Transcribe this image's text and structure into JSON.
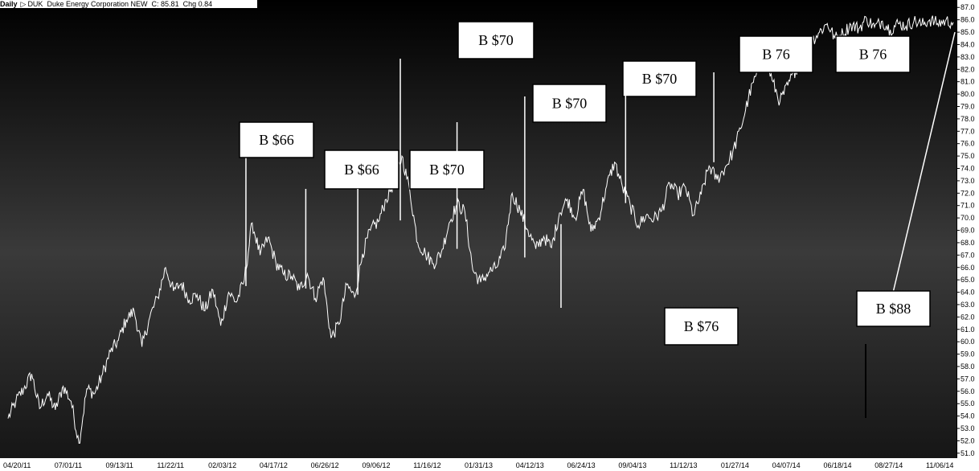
{
  "header": {
    "period": "Daily",
    "glyph": "▷",
    "ticker": "DUK",
    "company": "Duke Energy Corporation NEW",
    "close_label": "C: 85.81",
    "change_label": "Chg 0.84"
  },
  "chart_data": {
    "type": "line",
    "title": "",
    "xlabel": "",
    "ylabel": "",
    "ylim": [
      50.6,
      87.6
    ],
    "y_ticks": [
      "51.0",
      "52.0",
      "53.0",
      "54.0",
      "55.0",
      "56.0",
      "57.0",
      "58.0",
      "59.0",
      "60.0",
      "61.0",
      "62.0",
      "63.0",
      "64.0",
      "65.0",
      "66.0",
      "67.0",
      "68.0",
      "69.0",
      "70.0",
      "71.0",
      "72.0",
      "73.0",
      "74.0",
      "75.0",
      "76.0",
      "77.0",
      "78.0",
      "79.0",
      "80.0",
      "81.0",
      "82.0",
      "83.0",
      "84.0",
      "85.0",
      "86.0",
      "87.0"
    ],
    "x_ticks": [
      "04/20/11",
      "07/01/11",
      "09/13/11",
      "11/22/11",
      "02/03/12",
      "04/17/12",
      "06/26/12",
      "09/06/12",
      "11/16/12",
      "01/31/13",
      "04/12/13",
      "06/24/13",
      "09/04/13",
      "11/12/13",
      "01/27/14",
      "04/07/14",
      "06/18/14",
      "08/27/14",
      "11/06/14"
    ],
    "grid": false,
    "background": "#000000",
    "line_color": "#ffffff",
    "series": [
      {
        "x": [
          0,
          0.5,
          1,
          1.5,
          2,
          2.5,
          3,
          3.5,
          4,
          4.5,
          5,
          5.5,
          6,
          6.5,
          7,
          7.5,
          8,
          8.5,
          9,
          9.5,
          10,
          10.5,
          11,
          11.5,
          12,
          12.5,
          13,
          13.5,
          14,
          14.5,
          15,
          15.5,
          16,
          16.5,
          17,
          17.5,
          18
        ],
        "values": [
          53.8,
          55.2,
          56.2,
          57.4,
          54.6,
          55.8,
          54.5,
          56.4,
          55.2,
          51.8,
          56.2,
          55.8,
          57.4,
          59.2,
          60.1,
          61.8,
          62.5,
          59.6,
          62.0,
          63.6,
          66.0,
          64.1,
          64.7,
          63.4,
          63.8,
          62.5,
          64.2,
          61.3,
          64.0,
          63.2,
          65.0,
          69.6,
          67.0,
          68.4,
          66.4,
          65.4,
          65.3
        ]
      },
      {
        "x": [
          18,
          18.5,
          19,
          19.5,
          20,
          20.5,
          21,
          21.5,
          22,
          22.5,
          23,
          23.5,
          24,
          24.5,
          25,
          25.5,
          26,
          26.5,
          27,
          27.5,
          28,
          28.5,
          29,
          29.5,
          30,
          30.5,
          31,
          31.5,
          32,
          32.5,
          33,
          33.5,
          34,
          34.5,
          35,
          35.5,
          36,
          36.5,
          37
        ],
        "values": [
          65.3,
          64.2,
          65.5,
          63.5,
          65.2,
          60.3,
          61.4,
          64.6,
          63.6,
          67.1,
          69.0,
          69.7,
          71.5,
          72.9,
          75.0,
          72.2,
          68.0,
          67.1,
          66.3,
          67.2,
          69.6,
          71.1,
          70.5,
          65.8,
          64.8,
          65.6,
          66.0,
          67.4,
          72.0,
          70.6,
          69.0,
          67.5,
          68.5,
          67.6,
          70.4,
          71.5,
          70.0,
          72.3,
          68.9
        ]
      },
      {
        "x": [
          37,
          37.5,
          38,
          38.5,
          39,
          39.5,
          40,
          40.5,
          41,
          41.5,
          42,
          42.5,
          43,
          43.5,
          44,
          44.5,
          45,
          45.5,
          46,
          46.5,
          47,
          47.5,
          48,
          48.5,
          49,
          49.5,
          50,
          50.5,
          51,
          51.5,
          52,
          52.5,
          53,
          53.5,
          54,
          54.5,
          55,
          55.5,
          56,
          56.5,
          57,
          57.5,
          58,
          58.5,
          59,
          59.5,
          60
        ],
        "values": [
          68.9,
          70.0,
          72.6,
          74.5,
          72.5,
          71.0,
          69.4,
          70.2,
          69.9,
          70.6,
          72.8,
          71.9,
          72.5,
          70.2,
          71.9,
          74.2,
          73.1,
          74.0,
          75.3,
          77.2,
          79.7,
          81.6,
          83.4,
          81.1,
          79.4,
          80.7,
          82.0,
          83.0,
          84.3,
          85.0,
          85.7,
          84.5,
          84.9,
          85.6,
          85.3,
          86.1,
          85.4,
          85.9,
          85.2,
          85.7,
          85.5,
          85.9,
          85.6,
          86.0,
          85.7,
          85.9,
          85.8
        ]
      }
    ],
    "annotations": [
      {
        "label": "B $66",
        "x": 15.1,
        "y": 64.5,
        "placement": "above"
      },
      {
        "label": "B $66",
        "x": 18.9,
        "y": 64.3,
        "placement": "above"
      },
      {
        "label": "B $70",
        "x": 22.2,
        "y": 63.8,
        "placement": "above"
      },
      {
        "label": "B $70",
        "x": 24.9,
        "y": 69.8,
        "placement": "above"
      },
      {
        "label": "B $70",
        "x": 28.5,
        "y": 67.5,
        "placement": "above"
      },
      {
        "label": "B $70",
        "x": 32.8,
        "y": 66.8,
        "placement": "above"
      },
      {
        "label": "B $76",
        "x": 35.1,
        "y": 69.5,
        "placement": "below"
      },
      {
        "label": "B 76",
        "x": 39.2,
        "y": 71.2,
        "placement": "above"
      },
      {
        "label": "B 76",
        "x": 44.8,
        "y": 74.5,
        "placement": "above"
      },
      {
        "label": "B $88",
        "x": 44.0,
        "y": null,
        "placement": "box"
      }
    ]
  }
}
